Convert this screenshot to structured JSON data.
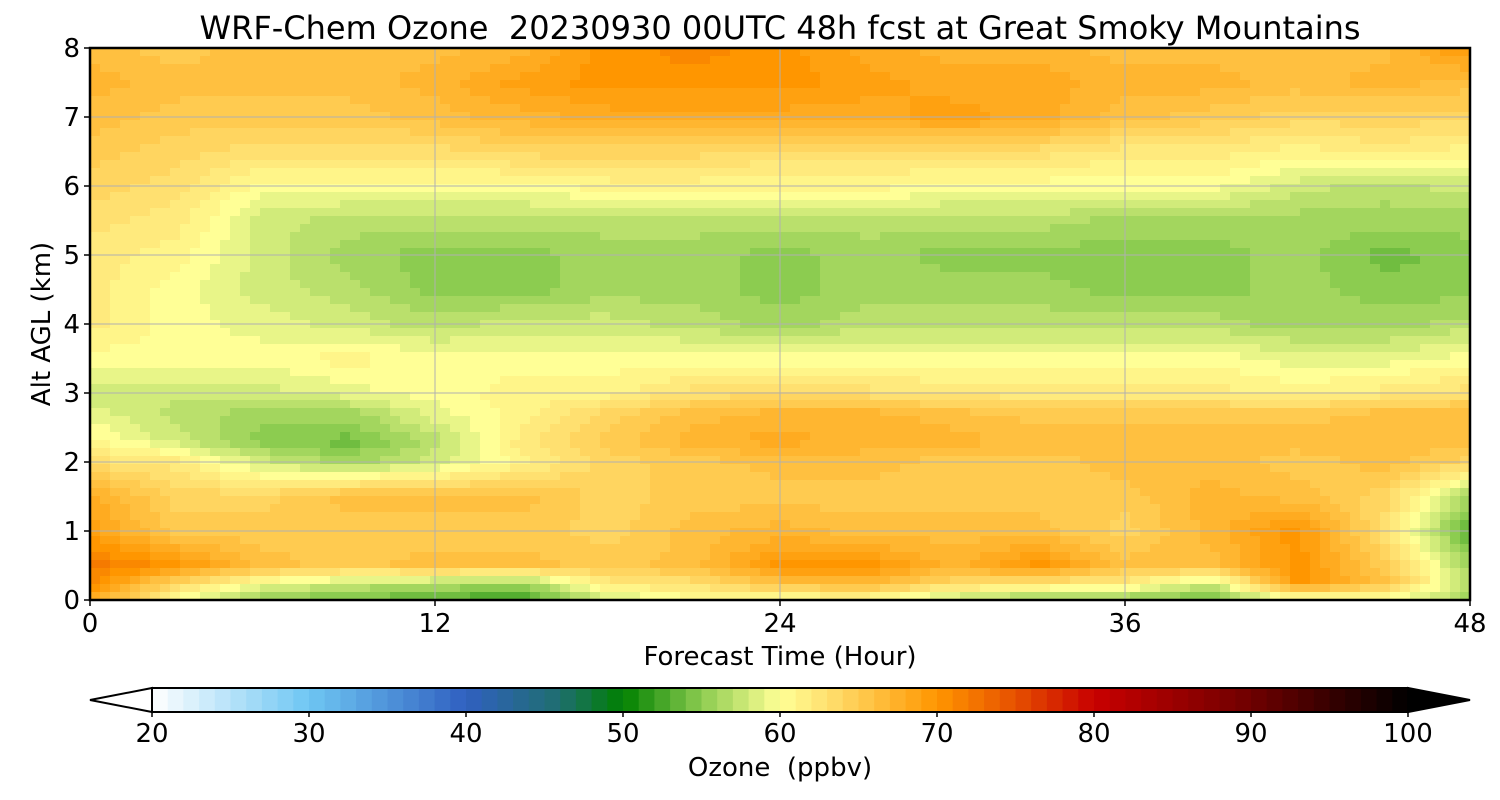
{
  "chart_data": {
    "type": "heatmap",
    "title": "WRF-Chem Ozone  20230930 00UTC 48h fcst at Great Smoky Mountains",
    "xlabel": "Forecast Time (Hour)",
    "ylabel": "Alt AGL (km)",
    "xlim": [
      0,
      48
    ],
    "ylim": [
      0,
      8
    ],
    "x_ticks": [
      0,
      12,
      24,
      36,
      48
    ],
    "y_ticks": [
      0,
      1,
      2,
      3,
      4,
      5,
      6,
      7,
      8
    ],
    "grid": true,
    "x": [
      0,
      3,
      6,
      9,
      12,
      15,
      18,
      21,
      24,
      27,
      30,
      33,
      36,
      39,
      42,
      45,
      48
    ],
    "y": [
      0,
      0.25,
      0.5,
      1,
      1.5,
      2,
      2.3,
      2.7,
      3,
      3.5,
      4,
      4.5,
      5,
      5.5,
      6,
      6.5,
      7,
      7.5,
      8
    ],
    "z": [
      [
        68,
        60,
        55,
        54,
        53,
        52,
        58,
        60,
        60,
        60,
        57,
        55,
        55,
        54,
        59,
        59,
        56
      ],
      [
        71,
        64,
        60,
        58,
        57,
        56,
        62,
        63,
        66,
        67,
        64,
        63,
        62,
        58,
        70,
        66,
        57
      ],
      [
        72,
        70,
        66,
        65,
        66,
        66,
        65,
        66,
        70,
        70,
        67,
        70,
        66,
        66,
        70,
        65,
        56
      ],
      [
        69,
        65,
        65,
        65,
        65,
        65,
        64,
        66,
        67,
        66,
        66,
        66,
        64,
        67,
        70,
        63,
        53
      ],
      [
        68,
        64,
        64,
        66,
        66,
        66,
        64,
        65,
        65,
        65,
        65,
        65,
        65,
        67,
        66,
        64,
        56
      ],
      [
        63,
        62,
        58,
        56,
        58,
        61,
        64,
        65,
        66,
        66,
        65,
        65,
        66,
        66,
        65,
        66,
        64
      ],
      [
        61,
        58,
        55,
        54,
        57,
        62,
        65,
        67,
        68,
        67,
        67,
        66,
        66,
        66,
        66,
        66,
        66
      ],
      [
        59,
        57,
        56,
        56,
        59,
        61,
        64,
        66,
        67,
        67,
        66,
        65,
        65,
        65,
        65,
        66,
        66
      ],
      [
        58,
        58,
        58,
        59,
        60,
        61,
        61,
        63,
        63,
        63,
        62,
        62,
        62,
        62,
        61,
        62,
        63
      ],
      [
        60,
        60,
        60,
        61,
        60,
        60,
        60,
        60,
        60,
        60,
        60,
        60,
        60,
        60,
        59,
        59,
        60
      ],
      [
        62,
        60,
        59,
        58,
        57,
        58,
        58,
        57,
        56,
        57,
        57,
        57,
        57,
        57,
        56,
        56,
        57
      ],
      [
        62,
        60,
        58,
        57,
        55,
        55,
        56,
        56,
        55,
        56,
        56,
        56,
        55,
        55,
        56,
        55,
        55
      ],
      [
        62,
        61,
        58,
        56,
        55,
        55,
        56,
        56,
        55,
        56,
        55,
        55,
        55,
        55,
        56,
        54,
        55
      ],
      [
        63,
        62,
        58,
        57,
        57,
        57,
        57,
        57,
        57,
        57,
        57,
        57,
        56,
        56,
        56,
        56,
        56
      ],
      [
        64,
        63,
        60,
        60,
        60,
        60,
        61,
        61,
        61,
        61,
        60,
        60,
        60,
        60,
        58,
        57,
        58
      ],
      [
        65,
        64,
        63,
        63,
        63,
        64,
        64,
        64,
        63,
        63,
        63,
        63,
        62,
        62,
        61,
        62,
        61
      ],
      [
        66,
        65,
        65,
        65,
        66,
        67,
        68,
        68,
        68,
        68,
        69,
        68,
        66,
        65,
        64,
        64,
        64
      ],
      [
        67,
        66,
        66,
        66,
        67,
        69,
        70,
        70,
        70,
        69,
        68,
        68,
        67,
        67,
        66,
        67,
        66
      ],
      [
        66,
        65,
        66,
        66,
        66,
        67,
        70,
        71,
        70,
        68,
        67,
        67,
        66,
        66,
        66,
        66,
        70
      ]
    ],
    "colorbar": {
      "label": "Ozone  (ppbv)",
      "ticks": [
        20,
        30,
        40,
        50,
        60,
        70,
        80,
        90,
        100
      ],
      "min": 20,
      "max": 100,
      "extend": "both",
      "color_stops": [
        [
          20,
          "#ffffff"
        ],
        [
          30,
          "#6ec6f3"
        ],
        [
          40,
          "#3060c0"
        ],
        [
          46,
          "#1e6e6e"
        ],
        [
          50,
          "#008000"
        ],
        [
          55,
          "#8ccc50"
        ],
        [
          60,
          "#ffff96"
        ],
        [
          63,
          "#ffe070"
        ],
        [
          70,
          "#ff9600"
        ],
        [
          75,
          "#e65000"
        ],
        [
          80,
          "#c80000"
        ],
        [
          90,
          "#6e0000"
        ],
        [
          100,
          "#000000"
        ]
      ]
    }
  }
}
